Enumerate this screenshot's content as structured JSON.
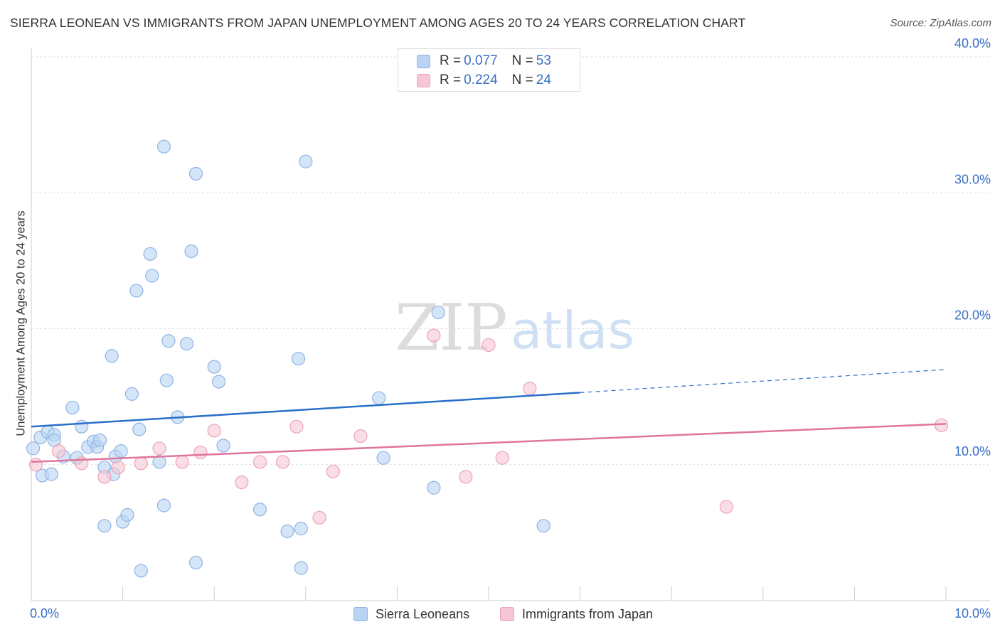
{
  "title": "SIERRA LEONEAN VS IMMIGRANTS FROM JAPAN UNEMPLOYMENT AMONG AGES 20 TO 24 YEARS CORRELATION CHART",
  "source": "Source: ZipAtlas.com",
  "watermark": {
    "zip": "ZIP",
    "atlas": "atlas"
  },
  "legend": {
    "series1": {
      "r_label": "R = ",
      "r_value": "0.077",
      "n_label": "N = ",
      "n_value": "53"
    },
    "series2": {
      "r_label": "R = ",
      "r_value": "0.224",
      "n_label": "N = ",
      "n_value": "24"
    }
  },
  "bottom_legend": {
    "series1": "Sierra Leoneans",
    "series2": "Immigrants from Japan"
  },
  "colors": {
    "blue_fill": "#b8d3f3",
    "blue_stroke": "#8fb4e3",
    "blue_line": "#2a6fc9",
    "pink_fill": "#f7c6d4",
    "pink_stroke": "#eba3b8",
    "pink_line": "#e0759b",
    "tick_text": "#3a6fc4",
    "grid": "#dddddd"
  },
  "chart_data": {
    "type": "scatter",
    "title": "SIERRA LEONEAN VS IMMIGRANTS FROM JAPAN UNEMPLOYMENT AMONG AGES 20 TO 24 YEARS CORRELATION CHART",
    "xlabel": "",
    "ylabel": "Unemployment Among Ages 20 to 24 years",
    "xlim": [
      0,
      10
    ],
    "ylim": [
      0,
      40
    ],
    "x_tick_labels": [
      {
        "value": 0,
        "label": "0.0%"
      },
      {
        "value": 10,
        "label": "10.0%"
      }
    ],
    "y_tick_labels": [
      {
        "value": 10,
        "label": "10.0%"
      },
      {
        "value": 20,
        "label": "20.0%"
      },
      {
        "value": 30,
        "label": "30.0%"
      },
      {
        "value": 40,
        "label": "40.0%"
      }
    ],
    "series": [
      {
        "name": "Sierra Leoneans",
        "R": 0.077,
        "N": 53,
        "trend": {
          "x0": 0,
          "y0": 12.8,
          "x1": 6.0,
          "y1": 15.3,
          "dash_to_x": 10.0,
          "dash_to_y": 17.0
        },
        "points": [
          [
            0.02,
            11.2
          ],
          [
            0.1,
            12.0
          ],
          [
            0.12,
            9.2
          ],
          [
            0.18,
            12.4
          ],
          [
            0.22,
            9.3
          ],
          [
            0.25,
            12.2
          ],
          [
            0.25,
            11.8
          ],
          [
            0.35,
            10.6
          ],
          [
            0.45,
            14.2
          ],
          [
            0.5,
            10.5
          ],
          [
            0.55,
            12.8
          ],
          [
            0.62,
            11.3
          ],
          [
            0.68,
            11.7
          ],
          [
            0.72,
            11.3
          ],
          [
            0.75,
            11.8
          ],
          [
            0.8,
            5.5
          ],
          [
            0.8,
            9.8
          ],
          [
            0.88,
            18.0
          ],
          [
            0.9,
            9.3
          ],
          [
            0.92,
            10.6
          ],
          [
            0.98,
            11.0
          ],
          [
            1.0,
            5.8
          ],
          [
            1.05,
            6.3
          ],
          [
            1.1,
            15.2
          ],
          [
            1.15,
            22.8
          ],
          [
            1.18,
            12.6
          ],
          [
            1.2,
            2.2
          ],
          [
            1.3,
            25.5
          ],
          [
            1.32,
            23.9
          ],
          [
            1.4,
            10.2
          ],
          [
            1.45,
            7.0
          ],
          [
            1.48,
            16.2
          ],
          [
            1.5,
            19.1
          ],
          [
            1.45,
            33.4
          ],
          [
            1.6,
            13.5
          ],
          [
            1.7,
            18.9
          ],
          [
            1.75,
            25.7
          ],
          [
            1.8,
            31.4
          ],
          [
            1.8,
            2.8
          ],
          [
            2.0,
            17.2
          ],
          [
            2.05,
            16.1
          ],
          [
            2.1,
            11.4
          ],
          [
            2.5,
            6.7
          ],
          [
            2.8,
            5.1
          ],
          [
            2.92,
            17.8
          ],
          [
            2.95,
            5.3
          ],
          [
            3.0,
            32.3
          ],
          [
            3.8,
            14.9
          ],
          [
            3.85,
            10.5
          ],
          [
            4.45,
            21.2
          ],
          [
            4.4,
            8.3
          ],
          [
            5.6,
            5.5
          ],
          [
            2.95,
            2.4
          ]
        ]
      },
      {
        "name": "Immigrants from Japan",
        "R": 0.224,
        "N": 24,
        "trend": {
          "x0": 0,
          "y0": 10.2,
          "x1": 10.0,
          "y1": 13.0
        },
        "points": [
          [
            0.05,
            10.0
          ],
          [
            0.3,
            11.0
          ],
          [
            0.55,
            10.1
          ],
          [
            0.8,
            9.1
          ],
          [
            0.95,
            9.8
          ],
          [
            1.2,
            10.1
          ],
          [
            1.4,
            11.2
          ],
          [
            1.65,
            10.2
          ],
          [
            1.85,
            10.9
          ],
          [
            2.0,
            12.5
          ],
          [
            2.3,
            8.7
          ],
          [
            2.5,
            10.2
          ],
          [
            2.75,
            10.2
          ],
          [
            2.9,
            12.8
          ],
          [
            3.15,
            6.1
          ],
          [
            3.3,
            9.5
          ],
          [
            3.6,
            12.1
          ],
          [
            4.4,
            19.5
          ],
          [
            4.75,
            9.1
          ],
          [
            5.0,
            18.8
          ],
          [
            5.15,
            10.5
          ],
          [
            5.45,
            15.6
          ],
          [
            7.6,
            6.9
          ],
          [
            9.95,
            12.9
          ]
        ]
      }
    ]
  }
}
